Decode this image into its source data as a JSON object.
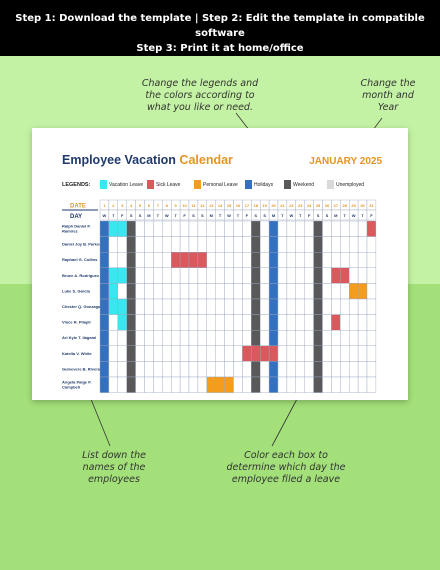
{
  "header": {
    "line1": "Step 1: Download the template | Step 2: Edit the template in compatible software",
    "line2": "Step 3: Print it at home/office"
  },
  "notes": {
    "legend_colors": [
      "Change the legends and",
      "the colors according to",
      "what you like or need."
    ],
    "month_year": [
      "Change the",
      "month and",
      "Year"
    ],
    "names": [
      "List down the",
      "names of the",
      "employees"
    ],
    "color_box": [
      "Color each box to",
      "determine which day the",
      "employee filed a leave"
    ]
  },
  "calendar": {
    "title_main": "Employee Vacation",
    "title_accent": "Calendar",
    "month": "JANUARY 2025",
    "legends_label": "LEGENDS:",
    "legend": [
      {
        "label": "Vacation Leave",
        "color": "#3ae6ef"
      },
      {
        "label": "Sick Leave",
        "color": "#d9595c"
      },
      {
        "label": "Personal Leave",
        "color": "#f59c1c"
      },
      {
        "label": "Holidays",
        "color": "#3370bf"
      },
      {
        "label": "Weekend",
        "color": "#595959"
      },
      {
        "label": "Unemployed",
        "color": "#d9d9d9"
      }
    ],
    "date_label": "DATE",
    "day_label": "DAY",
    "dates": [
      "1",
      "2",
      "3",
      "4",
      "5",
      "6",
      "7",
      "8",
      "9",
      "10",
      "11",
      "12",
      "13",
      "14",
      "15",
      "16",
      "17",
      "18",
      "19",
      "20",
      "21",
      "22",
      "23",
      "24",
      "25",
      "26",
      "27",
      "28",
      "29",
      "30",
      "31"
    ],
    "days": [
      "W",
      "T",
      "F",
      "S",
      "S",
      "M",
      "T",
      "W",
      "T",
      "F",
      "S",
      "S",
      "M",
      "T",
      "W",
      "T",
      "F",
      "S",
      "S",
      "M",
      "T",
      "W",
      "T",
      "F",
      "S",
      "S",
      "M",
      "T",
      "W",
      "T",
      "F"
    ],
    "holiday_days": [
      1,
      20
    ],
    "weekend_days": [
      4,
      18,
      25
    ],
    "employees": [
      {
        "name": "Ralph Daniel P. Ramirez",
        "leaves": {
          "2": "V",
          "3": "V",
          "31": "S"
        }
      },
      {
        "name": "Daniel Joy B. Parker",
        "leaves": {}
      },
      {
        "name": "Raphael G. Collins",
        "leaves": {
          "9": "S",
          "10": "S",
          "11": "S",
          "12": "S"
        }
      },
      {
        "name": "Bruce A. Rodriguez",
        "leaves": {
          "2": "V",
          "3": "V",
          "27": "S",
          "28": "S"
        }
      },
      {
        "name": "Luke S. Garcia",
        "leaves": {
          "2": "V",
          "29": "P",
          "30": "P"
        }
      },
      {
        "name": "Chester Q. Gonzaga",
        "leaves": {
          "2": "V",
          "3": "V"
        }
      },
      {
        "name": "Vince R. Pilapil",
        "leaves": {
          "3": "V",
          "27": "S"
        }
      },
      {
        "name": "Ari Kyle T. Ilagami",
        "leaves": {}
      },
      {
        "name": "Katella V. White",
        "leaves": {
          "17": "S",
          "18": "S",
          "19": "S",
          "20": "S"
        }
      },
      {
        "name": "Guinevere B. Rivera",
        "leaves": {}
      },
      {
        "name": "Angela Paige P. Campbell",
        "leaves": {
          "13": "P",
          "14": "P",
          "15": "P"
        }
      }
    ]
  }
}
